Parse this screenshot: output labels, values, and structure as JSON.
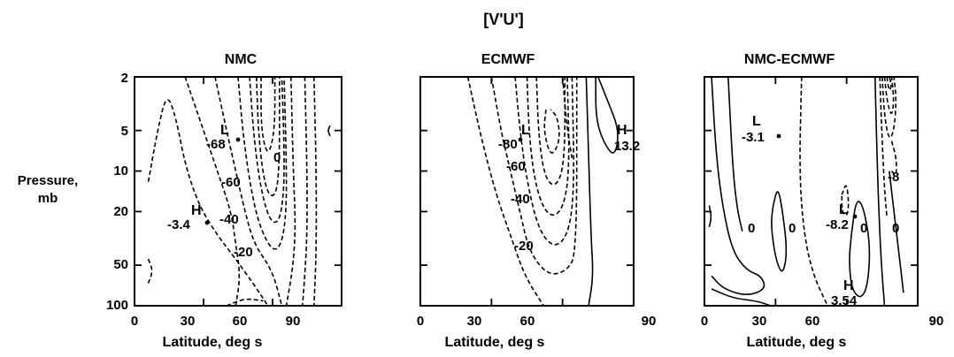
{
  "figure": {
    "title": "[V'U']"
  },
  "chart_data": [
    {
      "type": "contour",
      "title": "NMC",
      "ylabel": "Pressure,",
      "ylabel2": "mb",
      "xlabel": "Latitude, deg s",
      "xlim": [
        0,
        90
      ],
      "ylim": [
        100,
        2
      ],
      "yscale": "log",
      "xticks": [
        "0",
        "30",
        "60",
        "90"
      ],
      "yticks": [
        "2",
        "5",
        "10",
        "20",
        "50",
        "100"
      ],
      "contour_labels": [
        "-68",
        "-60",
        "-40",
        "-20",
        "0"
      ],
      "extrema": [
        {
          "kind": "L",
          "value": "-68",
          "lat": 58,
          "p": 6
        },
        {
          "kind": "H",
          "value": "-3.4",
          "lat": 28,
          "p": 23
        }
      ],
      "contours": [
        {
          "style": "dashed",
          "points": [
            [
              6,
              12
            ],
            [
              10,
              5
            ],
            [
              14,
              2.6
            ],
            [
              18,
              4
            ],
            [
              22,
              9
            ],
            [
              28,
              18
            ],
            [
              36,
              30
            ],
            [
              44,
              45
            ],
            [
              52,
              70
            ],
            [
              58,
              100
            ]
          ]
        },
        {
          "style": "dashed",
          "points": [
            [
              22,
              2
            ],
            [
              30,
              5
            ],
            [
              36,
              10
            ],
            [
              42,
              20
            ],
            [
              44,
              35
            ],
            [
              46,
              60
            ],
            [
              44,
              100
            ]
          ]
        },
        {
          "style": "dashed",
          "points": [
            [
              35,
              2
            ],
            [
              40,
              5
            ],
            [
              44,
              10
            ],
            [
              48,
              20
            ],
            [
              52,
              35
            ],
            [
              60,
              55
            ],
            [
              64,
              100
            ]
          ]
        },
        {
          "style": "dashed",
          "points": [
            [
              45,
              2
            ],
            [
              47,
              5
            ],
            [
              50,
              12
            ],
            [
              54,
              25
            ],
            [
              60,
              40
            ],
            [
              64,
              35
            ],
            [
              66,
              20
            ],
            [
              66,
              8
            ],
            [
              65,
              2
            ]
          ]
        },
        {
          "style": "dashed",
          "points": [
            [
              50,
              2
            ],
            [
              52,
              6
            ],
            [
              55,
              14
            ],
            [
              59,
              24
            ],
            [
              63,
              24
            ],
            [
              65,
              14
            ],
            [
              65,
              6
            ],
            [
              64,
              2
            ]
          ]
        },
        {
          "style": "dashed",
          "points": [
            [
              53,
              2
            ],
            [
              54,
              6
            ],
            [
              57,
              14
            ],
            [
              61,
              16
            ],
            [
              63,
              10
            ],
            [
              63,
              2
            ]
          ]
        },
        {
          "style": "dashed",
          "points": [
            [
              55,
              2
            ],
            [
              55,
              5
            ],
            [
              58,
              8
            ],
            [
              61,
              5
            ],
            [
              61,
              2
            ]
          ]
        },
        {
          "style": "dashed",
          "points": [
            [
              68,
              2
            ],
            [
              69,
              10
            ],
            [
              70,
              25
            ],
            [
              69,
              50
            ],
            [
              66,
              100
            ]
          ]
        },
        {
          "style": "dashed",
          "points": [
            [
              74,
              2
            ],
            [
              75,
              10
            ],
            [
              75,
              30
            ],
            [
              74,
              60
            ],
            [
              73,
              100
            ]
          ]
        },
        {
          "style": "dashed",
          "points": [
            [
              78,
              2
            ],
            [
              79,
              10
            ],
            [
              79,
              40
            ],
            [
              78,
              100
            ]
          ]
        },
        {
          "style": "dashed",
          "points": [
            [
              6,
              45
            ],
            [
              8,
              55
            ],
            [
              6,
              68
            ]
          ]
        },
        {
          "style": "dashed",
          "points": [
            [
              40,
              100
            ],
            [
              48,
              88
            ],
            [
              56,
              92
            ]
          ]
        },
        {
          "style": "solid",
          "points": [
            [
              85,
              4.6
            ],
            [
              84,
              5
            ],
            [
              85,
              5.5
            ]
          ]
        }
      ]
    },
    {
      "type": "contour",
      "title": "ECMWF",
      "xlim": [
        0,
        90
      ],
      "ylim": [
        100,
        2
      ],
      "yscale": "log",
      "xticks": [
        "0",
        "30",
        "60",
        "90"
      ],
      "contour_labels": [
        "-80",
        "-60",
        "-40",
        "-20",
        "13.2"
      ],
      "extrema": [
        {
          "kind": "L",
          "value": "-80",
          "lat": 57,
          "p": 6
        },
        {
          "kind": "H",
          "value": "13.2",
          "lat": 78,
          "p": 5
        }
      ],
      "contours": [
        {
          "style": "dashed",
          "points": [
            [
              20,
              2
            ],
            [
              26,
              6
            ],
            [
              32,
              15
            ],
            [
              38,
              30
            ],
            [
              44,
              60
            ],
            [
              52,
              100
            ]
          ]
        },
        {
          "style": "dashed",
          "points": [
            [
              30,
              2
            ],
            [
              34,
              5
            ],
            [
              38,
              10
            ],
            [
              42,
              20
            ],
            [
              46,
              40
            ],
            [
              54,
              60
            ],
            [
              62,
              55
            ],
            [
              66,
              40
            ],
            [
              66,
              2
            ]
          ]
        },
        {
          "style": "dashed",
          "points": [
            [
              40,
              2
            ],
            [
              42,
              5
            ],
            [
              45,
              12
            ],
            [
              50,
              28
            ],
            [
              57,
              38
            ],
            [
              63,
              28
            ],
            [
              65,
              12
            ],
            [
              64,
              2
            ]
          ]
        },
        {
          "style": "dashed",
          "points": [
            [
              45,
              2
            ],
            [
              46,
              6
            ],
            [
              49,
              14
            ],
            [
              54,
              22
            ],
            [
              60,
              20
            ],
            [
              63,
              10
            ],
            [
              62,
              2
            ]
          ]
        },
        {
          "style": "dashed",
          "points": [
            [
              49,
              2
            ],
            [
              50,
              6
            ],
            [
              53,
              12
            ],
            [
              58,
              13
            ],
            [
              61,
              8
            ],
            [
              61,
              2
            ]
          ]
        },
        {
          "style": "dashed",
          "points": [
            [
              53,
              3.5
            ],
            [
              52,
              5
            ],
            [
              55,
              8
            ],
            [
              59,
              6
            ],
            [
              58,
              4
            ],
            [
              55,
              3.5
            ]
          ]
        },
        {
          "style": "dashed",
          "points": [
            [
              60,
              2
            ],
            [
              62,
              5
            ],
            [
              64,
              8
            ]
          ]
        },
        {
          "style": "solid",
          "points": [
            [
              70,
              2
            ],
            [
              71,
              8
            ],
            [
              72,
              30
            ],
            [
              73,
              60
            ],
            [
              71,
              100
            ]
          ]
        },
        {
          "style": "solid",
          "points": [
            [
              75,
              2
            ],
            [
              79,
              3
            ],
            [
              84,
              5
            ],
            [
              82,
              8
            ],
            [
              77,
              6
            ],
            [
              74,
              4
            ],
            [
              74,
              2
            ]
          ]
        }
      ]
    },
    {
      "type": "contour",
      "title": "NMC-ECMWF",
      "xlim": [
        0,
        90
      ],
      "ylim": [
        100,
        2
      ],
      "yscale": "log",
      "xlabel": "Latitude, deg s",
      "xticks": [
        "0",
        "30",
        "60",
        "90"
      ],
      "contour_labels": [
        "0",
        "0",
        "0",
        "0",
        "-8"
      ],
      "extrema": [
        {
          "kind": "L",
          "value": "-3.1",
          "lat": 22,
          "p": 6
        },
        {
          "kind": "L",
          "value": "-8.2",
          "lat": 60,
          "p": 22
        },
        {
          "kind": "H",
          "value": "3.54",
          "lat": 63,
          "p": 45
        }
      ],
      "contours": [
        {
          "style": "solid",
          "points": [
            [
              3,
              2
            ],
            [
              5,
              8
            ],
            [
              8,
              20
            ],
            [
              12,
              40
            ],
            [
              18,
              55
            ],
            [
              24,
              60
            ],
            [
              26,
              75
            ],
            [
              18,
              85
            ],
            [
              8,
              75
            ],
            [
              3,
              60
            ]
          ]
        },
        {
          "style": "solid",
          "points": [
            [
              3,
              75
            ],
            [
              12,
              88
            ],
            [
              22,
              92
            ],
            [
              28,
              100
            ]
          ]
        },
        {
          "style": "solid",
          "points": [
            [
              10,
              2
            ],
            [
              12,
              10
            ],
            [
              14,
              20
            ],
            [
              16,
              28
            ]
          ]
        },
        {
          "style": "solid",
          "points": [
            [
              2,
              18
            ],
            [
              3,
              22
            ],
            [
              2,
              26
            ]
          ]
        },
        {
          "style": "solid",
          "points": [
            [
              29,
              18
            ],
            [
              31,
              13
            ],
            [
              33,
              20
            ],
            [
              35,
              40
            ],
            [
              33,
              60
            ],
            [
              30,
              45
            ],
            [
              28,
              25
            ],
            [
              29,
              18
            ]
          ]
        },
        {
          "style": "dashed",
          "points": [
            [
              41,
              2
            ],
            [
              40,
              10
            ],
            [
              42,
              30
            ],
            [
              46,
              60
            ],
            [
              52,
              100
            ]
          ]
        },
        {
          "style": "dashed",
          "points": [
            [
              58,
              15
            ],
            [
              60,
              12
            ],
            [
              61,
              18
            ],
            [
              60,
              22
            ],
            [
              58,
              20
            ],
            [
              58,
              15
            ]
          ]
        },
        {
          "style": "solid",
          "points": [
            [
              62,
              30
            ],
            [
              64,
              16
            ],
            [
              67,
              18
            ],
            [
              70,
              35
            ],
            [
              69,
              70
            ],
            [
              66,
              90
            ],
            [
              62,
              75
            ],
            [
              61,
              45
            ],
            [
              62,
              30
            ]
          ]
        },
        {
          "style": "solid",
          "points": [
            [
              72,
              2
            ],
            [
              73,
              10
            ],
            [
              74,
              30
            ],
            [
              75,
              60
            ],
            [
              76,
              100
            ]
          ]
        },
        {
          "style": "solid",
          "points": [
            [
              78,
              10
            ],
            [
              80,
              20
            ],
            [
              82,
              40
            ],
            [
              84,
              80
            ]
          ]
        },
        {
          "style": "dashed",
          "points": [
            [
              74,
              2
            ],
            [
              75,
              6
            ],
            [
              76,
              14
            ],
            [
              77,
              22
            ]
          ]
        },
        {
          "style": "dashed",
          "points": [
            [
              75,
              2
            ],
            [
              76,
              4
            ],
            [
              78,
              6
            ],
            [
              80,
              5
            ],
            [
              81,
              3
            ],
            [
              80,
              2
            ]
          ]
        },
        {
          "style": "dashed",
          "points": [
            [
              76,
              2
            ],
            [
              77,
              3
            ],
            [
              79,
              4
            ],
            [
              80,
              3
            ],
            [
              79,
              2
            ]
          ]
        },
        {
          "style": "dashed",
          "points": [
            [
              77,
              2
            ],
            [
              78,
              2.6
            ],
            [
              79,
              2.3
            ],
            [
              78,
              2
            ]
          ]
        },
        {
          "style": "dashed",
          "points": [
            [
              79,
              6
            ],
            [
              81,
              8
            ],
            [
              81,
              11
            ],
            [
              79,
              10
            ]
          ]
        }
      ]
    }
  ]
}
